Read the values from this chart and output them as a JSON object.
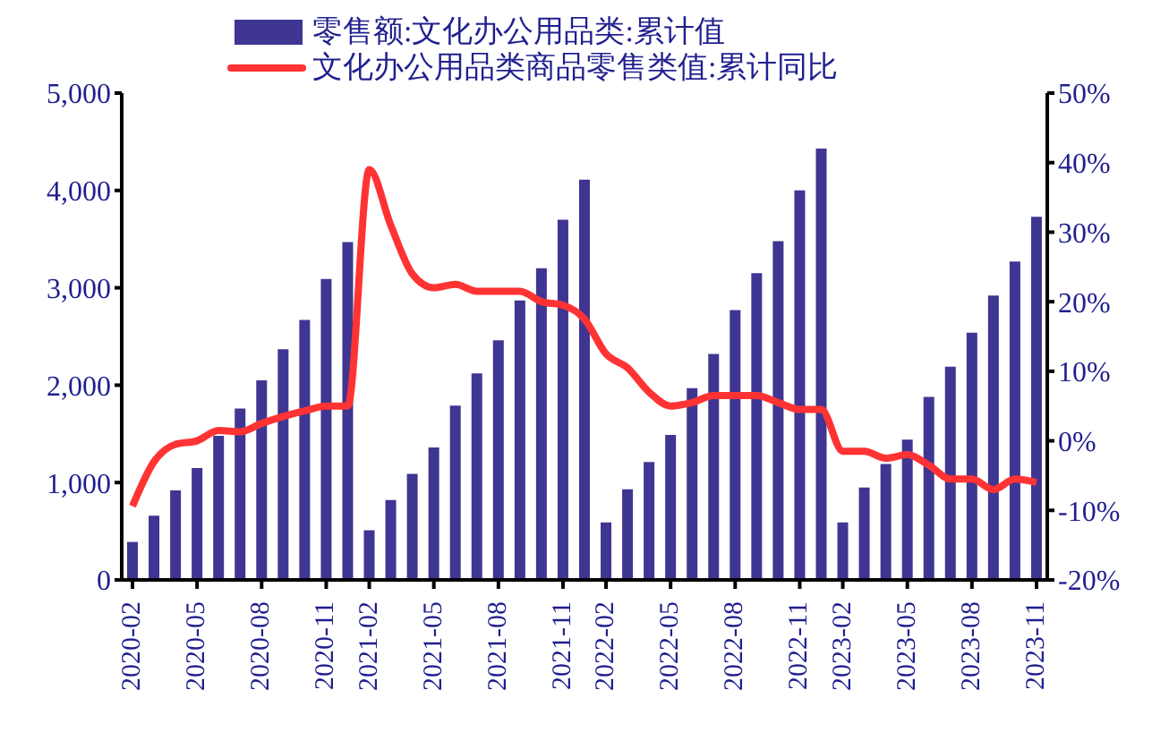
{
  "chart_data": {
    "type": "bar",
    "categories": [
      "2020-02",
      null,
      null,
      "2020-05",
      null,
      null,
      "2020-08",
      null,
      null,
      "2020-11",
      null,
      "2021-02",
      null,
      null,
      "2021-05",
      null,
      null,
      "2021-08",
      null,
      null,
      "2021-11",
      null,
      "2022-02",
      null,
      null,
      "2022-05",
      null,
      null,
      "2022-08",
      null,
      null,
      "2022-11",
      null,
      "2023-02",
      null,
      null,
      "2023-05",
      null,
      null,
      "2023-08",
      null,
      null,
      "2023-11"
    ],
    "series": [
      {
        "name": "零售额:文化办公用品类:累计值",
        "color": "#3f3592",
        "values": [
          390,
          660,
          920,
          1150,
          1480,
          1760,
          2050,
          2370,
          2670,
          3090,
          3470,
          510,
          820,
          1090,
          1360,
          1790,
          2120,
          2460,
          2870,
          3200,
          3700,
          4110,
          590,
          930,
          1210,
          1490,
          1970,
          2320,
          2770,
          3150,
          3480,
          4000,
          4430,
          590,
          950,
          1190,
          1440,
          1880,
          2190,
          2540,
          2920,
          3270,
          3730
        ]
      },
      {
        "name": "文化办公用品类商品零售类值:累计同比",
        "type": "line",
        "axis": "y2",
        "color": "#ff3333",
        "values": [
          -9.4,
          -3,
          -0.5,
          0,
          1.5,
          1.3,
          2.5,
          3.5,
          4.3,
          5,
          5,
          39,
          31,
          24,
          22,
          22.5,
          21.5,
          21.5,
          21.5,
          20,
          19.5,
          17.5,
          12.5,
          10.5,
          7,
          5,
          5.5,
          6.5,
          6.5,
          6.5,
          5.5,
          4.5,
          4.5,
          -1.5,
          -1.5,
          -2.5,
          -2,
          -3.5,
          -5.5,
          -5.5,
          -7,
          -5.5,
          -6
        ]
      }
    ],
    "ylim": [
      0,
      5000
    ],
    "yticks": [
      0,
      {
        "value": 1000,
        "label": "1,000"
      },
      {
        "value": 2000,
        "label": "2,000"
      },
      {
        "value": 3000,
        "label": "3,000"
      },
      {
        "value": 4000,
        "label": "4,000"
      },
      {
        "value": 5000,
        "label": "5,000"
      }
    ],
    "y2lim": [
      -20,
      50
    ],
    "y2ticks": [
      {
        "value": -20,
        "label": "-20%"
      },
      {
        "value": -10,
        "label": "-10%"
      },
      {
        "value": 0,
        "label": "0%"
      },
      {
        "value": 10,
        "label": "10%"
      },
      {
        "value": 20,
        "label": "20%"
      },
      {
        "value": 30,
        "label": "30%"
      },
      {
        "value": 40,
        "label": "40%"
      },
      {
        "value": 50,
        "label": "50%"
      }
    ],
    "legend": "top",
    "grid": false,
    "marker": "none",
    "line_style": "solid"
  }
}
